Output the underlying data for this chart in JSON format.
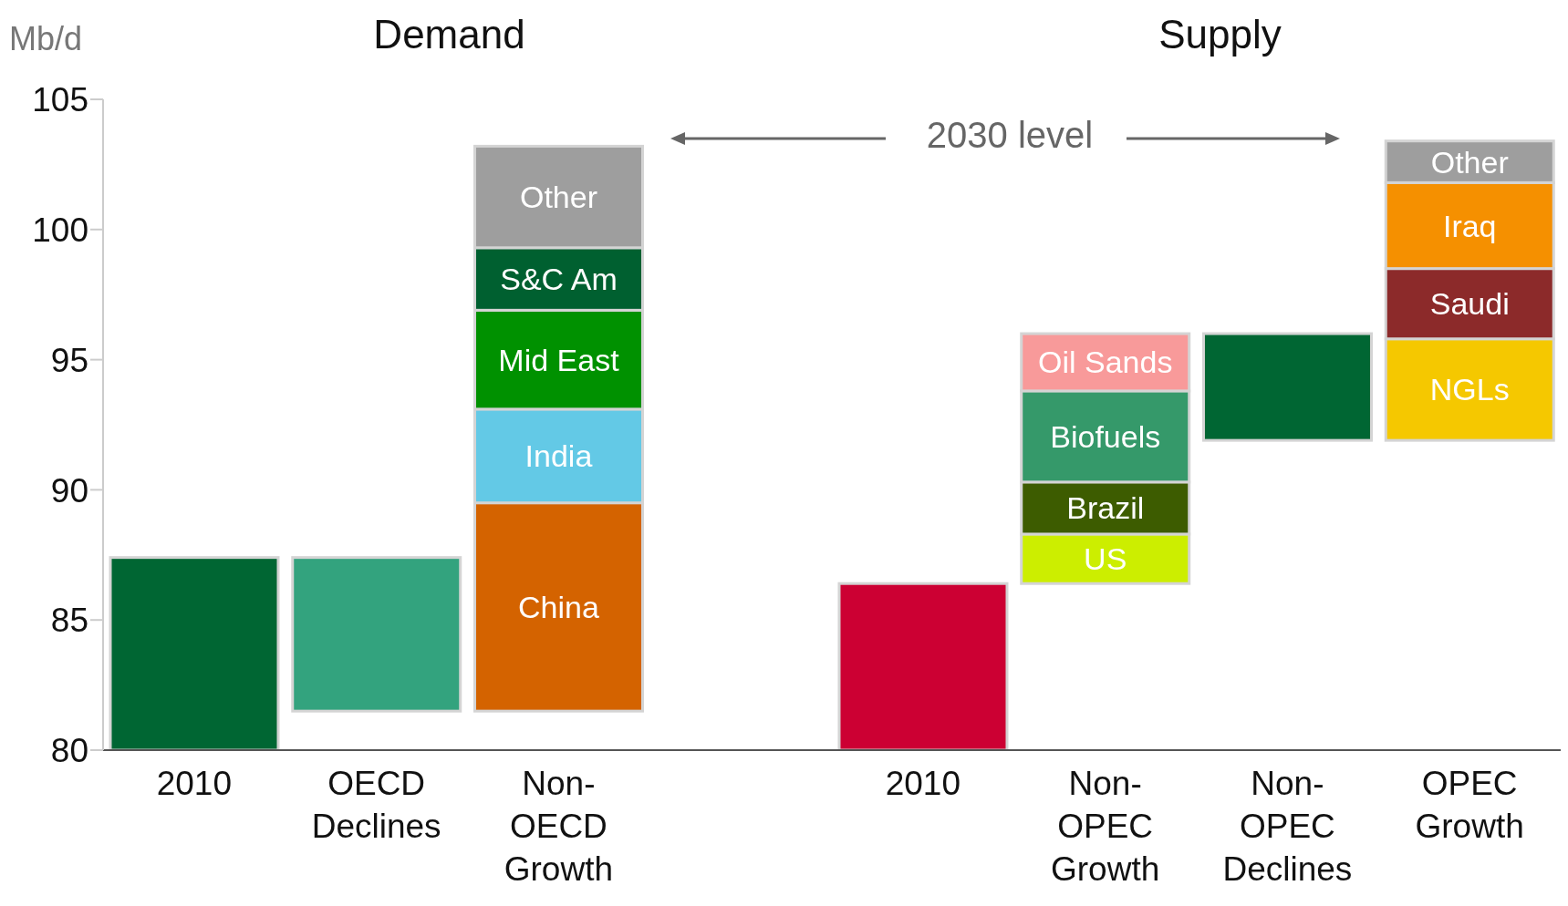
{
  "chart_data": {
    "type": "bar",
    "ylabel": "Mb/d",
    "ylim": [
      80,
      105
    ],
    "yticks": [
      80,
      85,
      90,
      95,
      100,
      105
    ],
    "categories": [
      "2010",
      "OECD Declines",
      "Non-OECD Growth",
      null,
      "2010",
      "Non-OPEC Growth",
      "Non-OPEC Declines",
      "OPEC Growth"
    ],
    "series": [
      {
        "color": "#006633",
        "base": [
          80,
          null,
          null,
          null,
          null,
          null,
          null,
          null
        ],
        "values": [
          7.4,
          null,
          null,
          null,
          null,
          null,
          null,
          null
        ]
      },
      {
        "color": "#33a37e",
        "base": [
          null,
          81.5,
          null,
          null,
          null,
          null,
          null,
          null
        ],
        "values": [
          null,
          5.9,
          null,
          null,
          null,
          null,
          null,
          null
        ]
      },
      {
        "name": "China",
        "color": "#d46300",
        "base": [
          null,
          null,
          81.5,
          null,
          null,
          null,
          null,
          null
        ],
        "values": [
          null,
          null,
          8.0,
          null,
          null,
          null,
          null,
          null
        ]
      },
      {
        "name": "India",
        "color": "#63c9e6",
        "base": [
          null,
          null,
          89.5,
          null,
          null,
          null,
          null,
          null
        ],
        "values": [
          null,
          null,
          3.6,
          null,
          null,
          null,
          null,
          null
        ]
      },
      {
        "name": "Mid East",
        "color": "#009100",
        "base": [
          null,
          null,
          93.1,
          null,
          null,
          null,
          null,
          null
        ],
        "values": [
          null,
          null,
          3.8,
          null,
          null,
          null,
          null,
          null
        ]
      },
      {
        "name": "S&C Am",
        "color": "#006030",
        "base": [
          null,
          null,
          96.9,
          null,
          null,
          null,
          null,
          null
        ],
        "values": [
          null,
          null,
          2.4,
          null,
          null,
          null,
          null,
          null
        ]
      },
      {
        "name": "Other",
        "color": "#9e9e9e",
        "base": [
          null,
          null,
          99.3,
          null,
          null,
          null,
          null,
          null
        ],
        "values": [
          null,
          null,
          3.9,
          null,
          null,
          null,
          null,
          null
        ]
      },
      {
        "color": "#cc0033",
        "base": [
          null,
          null,
          null,
          null,
          80,
          null,
          null,
          null
        ],
        "values": [
          null,
          null,
          null,
          null,
          6.4,
          null,
          null,
          null
        ]
      },
      {
        "name": "US",
        "color": "#ccee00",
        "base": [
          null,
          null,
          null,
          null,
          null,
          86.4,
          null,
          null
        ],
        "values": [
          null,
          null,
          null,
          null,
          null,
          1.9,
          null,
          null
        ]
      },
      {
        "name": "Brazil",
        "color": "#3d5c00",
        "base": [
          null,
          null,
          null,
          null,
          null,
          88.3,
          null,
          null
        ],
        "values": [
          null,
          null,
          null,
          null,
          null,
          2.0,
          null,
          null
        ]
      },
      {
        "name": "Biofuels",
        "color": "#35996a",
        "base": [
          null,
          null,
          null,
          null,
          null,
          90.3,
          null,
          null
        ],
        "values": [
          null,
          null,
          null,
          null,
          null,
          3.5,
          null,
          null
        ]
      },
      {
        "name": "Oil Sands",
        "color": "#f89a9a",
        "base": [
          null,
          null,
          null,
          null,
          null,
          93.8,
          null,
          null
        ],
        "values": [
          null,
          null,
          null,
          null,
          null,
          2.2,
          null,
          null
        ]
      },
      {
        "color": "#006633",
        "base": [
          null,
          null,
          null,
          null,
          null,
          null,
          91.9,
          null
        ],
        "values": [
          null,
          null,
          null,
          null,
          null,
          null,
          4.1,
          null
        ]
      },
      {
        "name": "NGLs",
        "color": "#f5c800",
        "base": [
          null,
          null,
          null,
          null,
          null,
          null,
          null,
          91.9
        ],
        "values": [
          null,
          null,
          null,
          null,
          null,
          null,
          null,
          3.9
        ]
      },
      {
        "name": "Saudi",
        "color": "#8c2a2a",
        "base": [
          null,
          null,
          null,
          null,
          null,
          null,
          null,
          95.8
        ],
        "values": [
          null,
          null,
          null,
          null,
          null,
          null,
          null,
          2.7
        ]
      },
      {
        "name": "Iraq",
        "color": "#f59000",
        "base": [
          null,
          null,
          null,
          null,
          null,
          null,
          null,
          98.5
        ],
        "values": [
          null,
          null,
          null,
          null,
          null,
          null,
          null,
          3.3
        ]
      },
      {
        "name": "Other",
        "color": "#9e9e9e",
        "base": [
          null,
          null,
          null,
          null,
          null,
          null,
          null,
          101.8
        ],
        "values": [
          null,
          null,
          null,
          null,
          null,
          null,
          null,
          1.6
        ]
      }
    ],
    "annotations": [
      "Demand",
      "Supply",
      "2030 level"
    ]
  }
}
